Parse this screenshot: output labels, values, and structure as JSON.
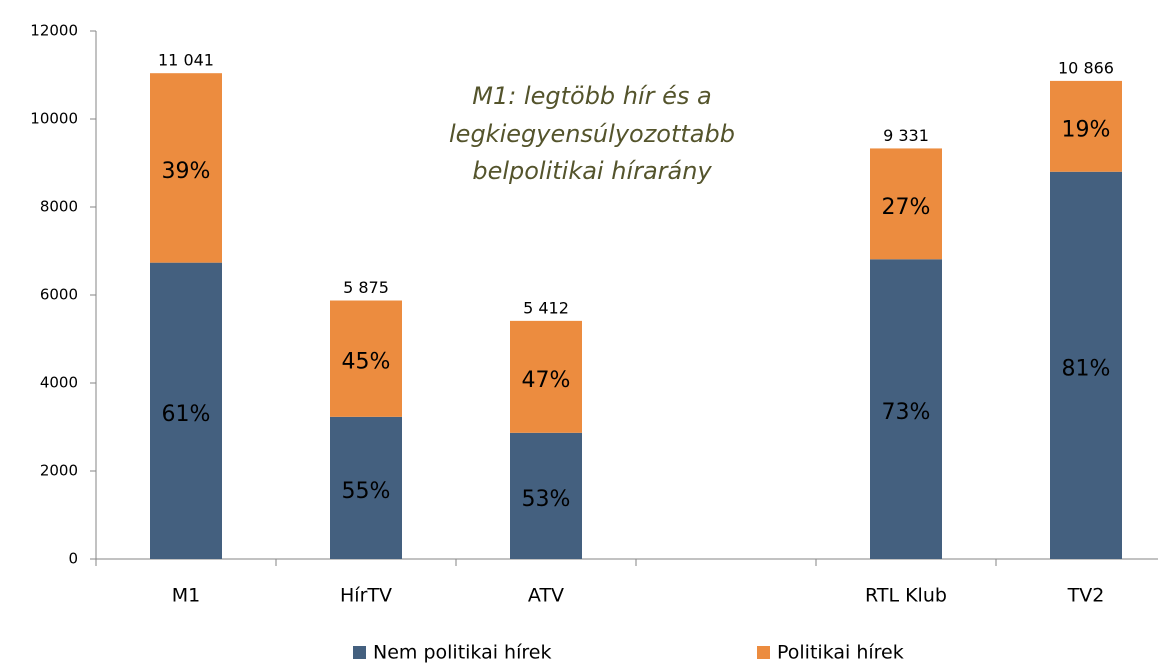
{
  "chart_data": {
    "type": "stacked_bar",
    "annotation": [
      "M1: legtöbb hír és a",
      "legkiegyensúlyozottabb",
      "belpolitikai hírarány"
    ],
    "categories": [
      "M1",
      "HírTV",
      "ATV",
      null,
      "RTL Klub",
      "TV2"
    ],
    "series": [
      {
        "name": "Nem politikai hírek",
        "color": "#44607f",
        "values": [
          6735,
          3231,
          2868,
          null,
          6812,
          8801
        ],
        "value_labels": [
          "61%",
          "55%",
          "53%",
          null,
          "73%",
          "81%"
        ]
      },
      {
        "name": "Politikai hírek",
        "color": "#ec8c3f",
        "values": [
          4306,
          2644,
          2544,
          null,
          2519,
          2065
        ],
        "value_labels": [
          "39%",
          "45%",
          "47%",
          null,
          "27%",
          "19%"
        ]
      }
    ],
    "totals": [
      11041,
      5875,
      5412,
      null,
      9331,
      10866
    ],
    "total_labels": [
      "11 041",
      "5 875",
      "5 412",
      null,
      "9 331",
      "10 866"
    ],
    "ylim": [
      0,
      12000
    ],
    "yticks": [
      0,
      2000,
      4000,
      6000,
      8000,
      10000,
      12000
    ]
  }
}
